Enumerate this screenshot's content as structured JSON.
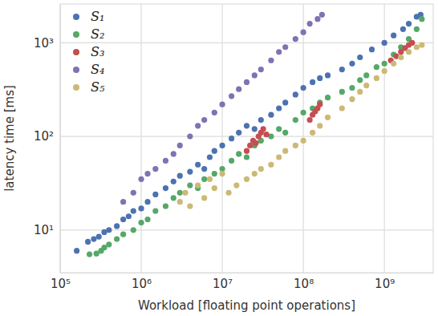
{
  "chart_data": {
    "type": "scatter",
    "x_label": "Workload [floating point operations]",
    "y_label": "latency time [ms]",
    "log": true,
    "grid": true,
    "legend": "upper left",
    "xlim": [
      100000,
      4000000000
    ],
    "ylim": [
      3.5,
      2600
    ],
    "xticks": [
      {
        "value": 100000,
        "label": "10⁵"
      },
      {
        "value": 1000000,
        "label": "10⁶"
      },
      {
        "value": 10000000,
        "label": "10⁷"
      },
      {
        "value": 100000000,
        "label": "10⁸"
      },
      {
        "value": 1000000000,
        "label": "10⁹"
      }
    ],
    "yticks": [
      {
        "value": 10,
        "label": "10¹"
      },
      {
        "value": 100,
        "label": "10²"
      },
      {
        "value": 1000,
        "label": "10³"
      }
    ],
    "series": [
      {
        "name": "S₁",
        "color": "#4c72b0",
        "x": [
          160000.0,
          220000.0,
          260000.0,
          300000.0,
          350000.0,
          400000.0,
          500000.0,
          600000.0,
          700000.0,
          800000.0,
          1000000.0,
          1200000.0,
          1500000.0,
          2000000.0,
          2500000.0,
          3000000.0,
          4000000.0,
          5000000.0,
          6000000.0,
          7000000.0,
          8000000.0,
          10000000.0,
          13000000.0,
          16000000.0,
          20000000.0,
          25000000.0,
          30000000.0,
          40000000.0,
          50000000.0,
          60000000.0,
          80000000.0,
          100000000.0,
          130000000.0,
          160000000.0,
          200000000.0,
          300000000.0,
          400000000.0,
          500000000.0,
          700000000.0,
          1000000000.0,
          1300000000.0,
          1700000000.0,
          2000000000.0,
          2500000000.0,
          2800000000.0
        ],
        "values": [
          6,
          7.5,
          8,
          8.5,
          9.5,
          10,
          11,
          13,
          14,
          16,
          17,
          20,
          24,
          28,
          33,
          38,
          42,
          50,
          45,
          60,
          70,
          80,
          95,
          110,
          130,
          120,
          150,
          170,
          200,
          230,
          280,
          330,
          380,
          420,
          450,
          520,
          600,
          700,
          850,
          1000,
          1200,
          1400,
          1600,
          1900,
          2000
        ]
      },
      {
        "name": "S₂",
        "color": "#55a868",
        "x": [
          230000.0,
          280000.0,
          320000.0,
          350000.0,
          400000.0,
          500000.0,
          600000.0,
          800000.0,
          1000000.0,
          1200000.0,
          1500000.0,
          2000000.0,
          2500000.0,
          3000000.0,
          4000000.0,
          5000000.0,
          6000000.0,
          8000000.0,
          10000000.0,
          13000000.0,
          16000000.0,
          20000000.0,
          25000000.0,
          30000000.0,
          40000000.0,
          50000000.0,
          60000000.0,
          80000000.0,
          100000000.0,
          130000000.0,
          160000000.0,
          200000000.0,
          300000000.0,
          400000000.0,
          500000000.0,
          600000000.0,
          800000000.0,
          1000000000.0,
          1300000000.0,
          1600000000.0,
          2000000000.0,
          2500000000.0,
          2900000000.0
        ],
        "values": [
          5.5,
          5.6,
          6,
          6.5,
          7,
          8,
          9,
          10,
          12,
          13,
          16,
          18,
          22,
          25,
          30,
          28,
          35,
          40,
          45,
          55,
          65,
          60,
          80,
          90,
          100,
          120,
          110,
          150,
          180,
          200,
          230,
          260,
          300,
          330,
          400,
          450,
          550,
          600,
          750,
          900,
          1100,
          1400,
          1800
        ]
      },
      {
        "name": "S₃",
        "color": "#c44e52",
        "x": [
          20000000.0,
          22000000.0,
          24000000.0,
          26000000.0,
          28000000.0,
          30000000.0,
          32000000.0,
          35000000.0,
          120000000.0,
          130000000.0,
          140000000.0,
          150000000.0,
          160000000.0,
          1200000000.0,
          1400000000.0,
          1600000000.0,
          1800000000.0,
          2000000000.0,
          2200000000.0
        ],
        "values": [
          70,
          80,
          90,
          85,
          100,
          110,
          120,
          105,
          150,
          170,
          185,
          200,
          220,
          650,
          720,
          800,
          880,
          950,
          1000
        ]
      },
      {
        "name": "S₄",
        "color": "#8172b2",
        "x": [
          600000.0,
          800000.0,
          1000000.0,
          1200000.0,
          1500000.0,
          2000000.0,
          2500000.0,
          3000000.0,
          4000000.0,
          5000000.0,
          6000000.0,
          8000000.0,
          10000000.0,
          13000000.0,
          16000000.0,
          20000000.0,
          25000000.0,
          30000000.0,
          40000000.0,
          50000000.0,
          60000000.0,
          80000000.0,
          100000000.0,
          120000000.0,
          150000000.0,
          170000000.0
        ],
        "values": [
          20,
          25,
          35,
          40,
          45,
          55,
          65,
          80,
          100,
          130,
          150,
          180,
          220,
          270,
          320,
          380,
          450,
          520,
          650,
          800,
          900,
          1100,
          1300,
          1600,
          1800,
          2000
        ]
      },
      {
        "name": "S₅",
        "color": "#ccb974",
        "x": [
          3000000.0,
          3500000.0,
          4000000.0,
          5000000.0,
          6000000.0,
          7000000.0,
          8000000.0,
          10000000.0,
          12000000.0,
          15000000.0,
          20000000.0,
          25000000.0,
          30000000.0,
          40000000.0,
          50000000.0,
          60000000.0,
          80000000.0,
          100000000.0,
          130000000.0,
          160000000.0,
          200000000.0,
          300000000.0,
          400000000.0,
          500000000.0,
          600000000.0,
          800000000.0,
          1000000000.0,
          1300000000.0,
          1600000000.0,
          2000000000.0,
          2500000000.0,
          2900000000.0
        ],
        "values": [
          20,
          25,
          18,
          30,
          22,
          35,
          28,
          40,
          25,
          30,
          35,
          40,
          45,
          50,
          60,
          70,
          80,
          90,
          110,
          130,
          160,
          200,
          250,
          300,
          350,
          420,
          500,
          600,
          700,
          800,
          900,
          950
        ]
      }
    ]
  }
}
